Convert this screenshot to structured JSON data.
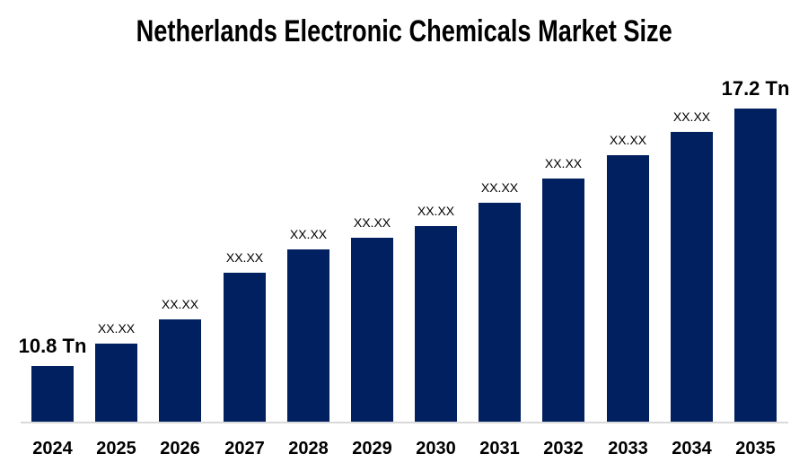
{
  "title": "Netherlands Electronic Chemicals Market Size",
  "chart_data": {
    "type": "bar",
    "title": "Netherlands Electronic Chemicals Market Size",
    "unit": "Tn",
    "categories": [
      "2024",
      "2025",
      "2026",
      "2027",
      "2028",
      "2029",
      "2030",
      "2031",
      "2032",
      "2033",
      "2034",
      "2035"
    ],
    "values": [
      10.8,
      11.36,
      11.96,
      13.12,
      13.7,
      13.99,
      14.28,
      14.86,
      15.46,
      16.04,
      16.62,
      17.2
    ],
    "bar_labels": [
      "10.8 Tn",
      "XX.XX",
      "XX.XX",
      "XX.XX",
      "XX.XX",
      "XX.XX",
      "XX.XX",
      "XX.XX",
      "XX.XX",
      "XX.XX",
      "XX.XX",
      "17.2 Tn"
    ],
    "emphasized_label_indexes": [
      0,
      11
    ],
    "xlabel": "",
    "ylabel": "",
    "ylim": [
      9.42,
      18.2
    ],
    "grid": false,
    "legend": "none",
    "colors": {
      "bar": "#002060",
      "label_text": "#000000",
      "axis_line": "#d9d9d9",
      "background": "#ffffff"
    }
  }
}
